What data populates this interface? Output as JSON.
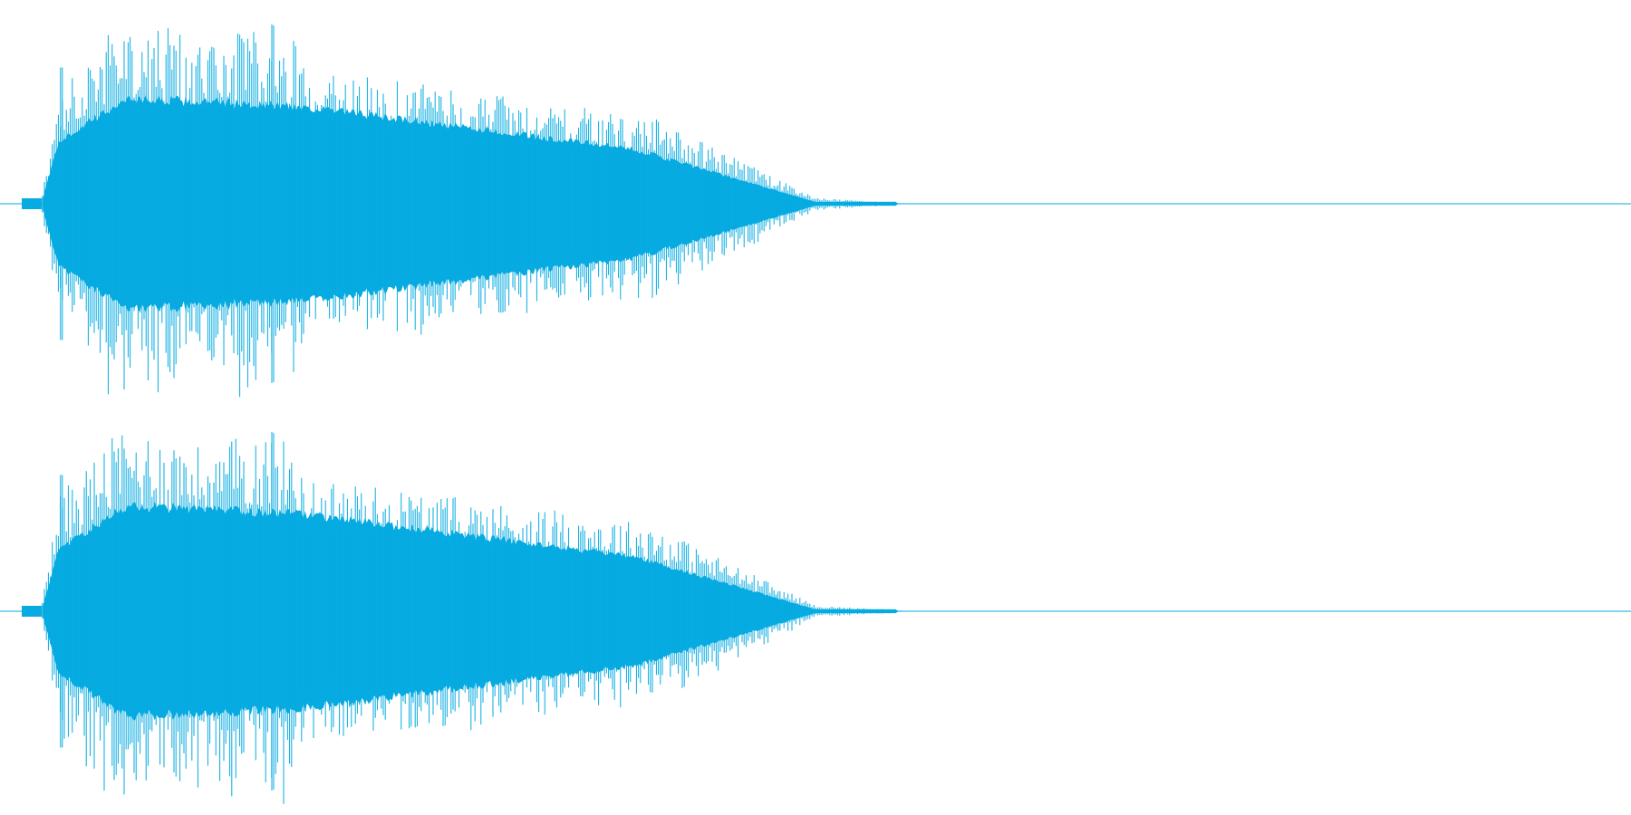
{
  "waveform": {
    "color": "#06ABE1",
    "background": "#FFFFFF",
    "channels": [
      {
        "name": "channel-1",
        "onset_fraction": 0.026,
        "attack_fraction": 0.036,
        "decay_end_fraction": 0.56,
        "tail_end_fraction": 0.575,
        "peak_amplitude": 0.97,
        "body_amplitude": 0.58
      },
      {
        "name": "channel-2",
        "onset_fraction": 0.026,
        "attack_fraction": 0.036,
        "decay_end_fraction": 0.56,
        "tail_end_fraction": 0.575,
        "peak_amplitude": 0.97,
        "body_amplitude": 0.58
      }
    ]
  }
}
